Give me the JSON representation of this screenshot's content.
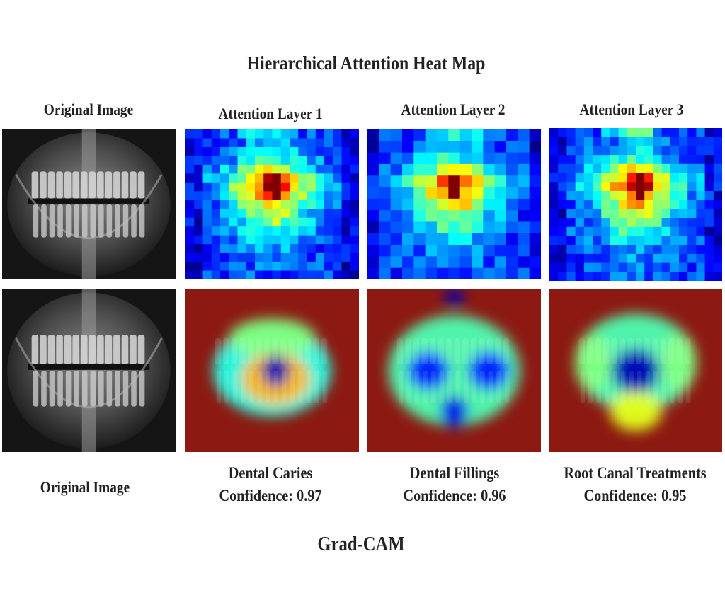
{
  "figure_title": "Hierarchical Attention Heat Map",
  "top_row": {
    "original_label": "Original Image",
    "layers": [
      {
        "label": "Attention Layer 1"
      },
      {
        "label": "Attention Layer 2"
      },
      {
        "label": "Attention Layer 3"
      }
    ]
  },
  "bottom_row": {
    "original_label": "Original Image",
    "predictions": [
      {
        "class": "Dental Caries",
        "confidence": "Confidence: 0.97"
      },
      {
        "class": "Dental Fillings",
        "confidence": "Confidence: 0.96"
      },
      {
        "class": "Root Canal Treatments",
        "confidence": "Confidence: 0.95"
      }
    ]
  },
  "section_label": "Grad-CAM",
  "colors": {
    "heat_low": "#1f3fc8",
    "heat_mid": "#62c9c0",
    "heat_high": "#b52a1e",
    "xray_bg": "#1a1a1a"
  }
}
